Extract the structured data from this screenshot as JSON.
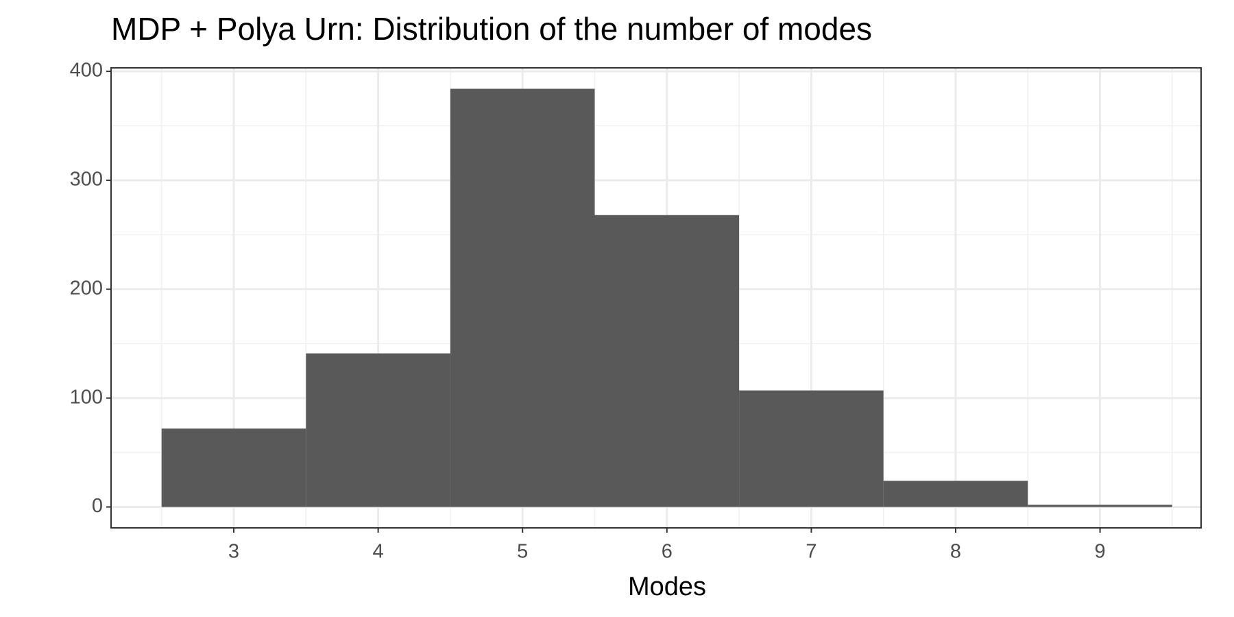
{
  "chart_data": {
    "type": "histogram",
    "title": "MDP + Polya Urn: Distribution of the number of modes",
    "x_label": "Modes",
    "bins": [
      2.5,
      3.5,
      4.5,
      5.5,
      6.5,
      7.5,
      8.5,
      9.5
    ],
    "values": [
      72,
      141,
      384,
      268,
      107,
      24,
      2
    ],
    "color": "#595959",
    "xlim": [
      2.15,
      9.7
    ],
    "ylim": [
      -19.2,
      403.2
    ],
    "xticks": [
      3,
      4,
      5,
      6,
      7,
      8,
      9
    ],
    "yticks": [
      0,
      100,
      200,
      300,
      400
    ],
    "grid": true
  }
}
